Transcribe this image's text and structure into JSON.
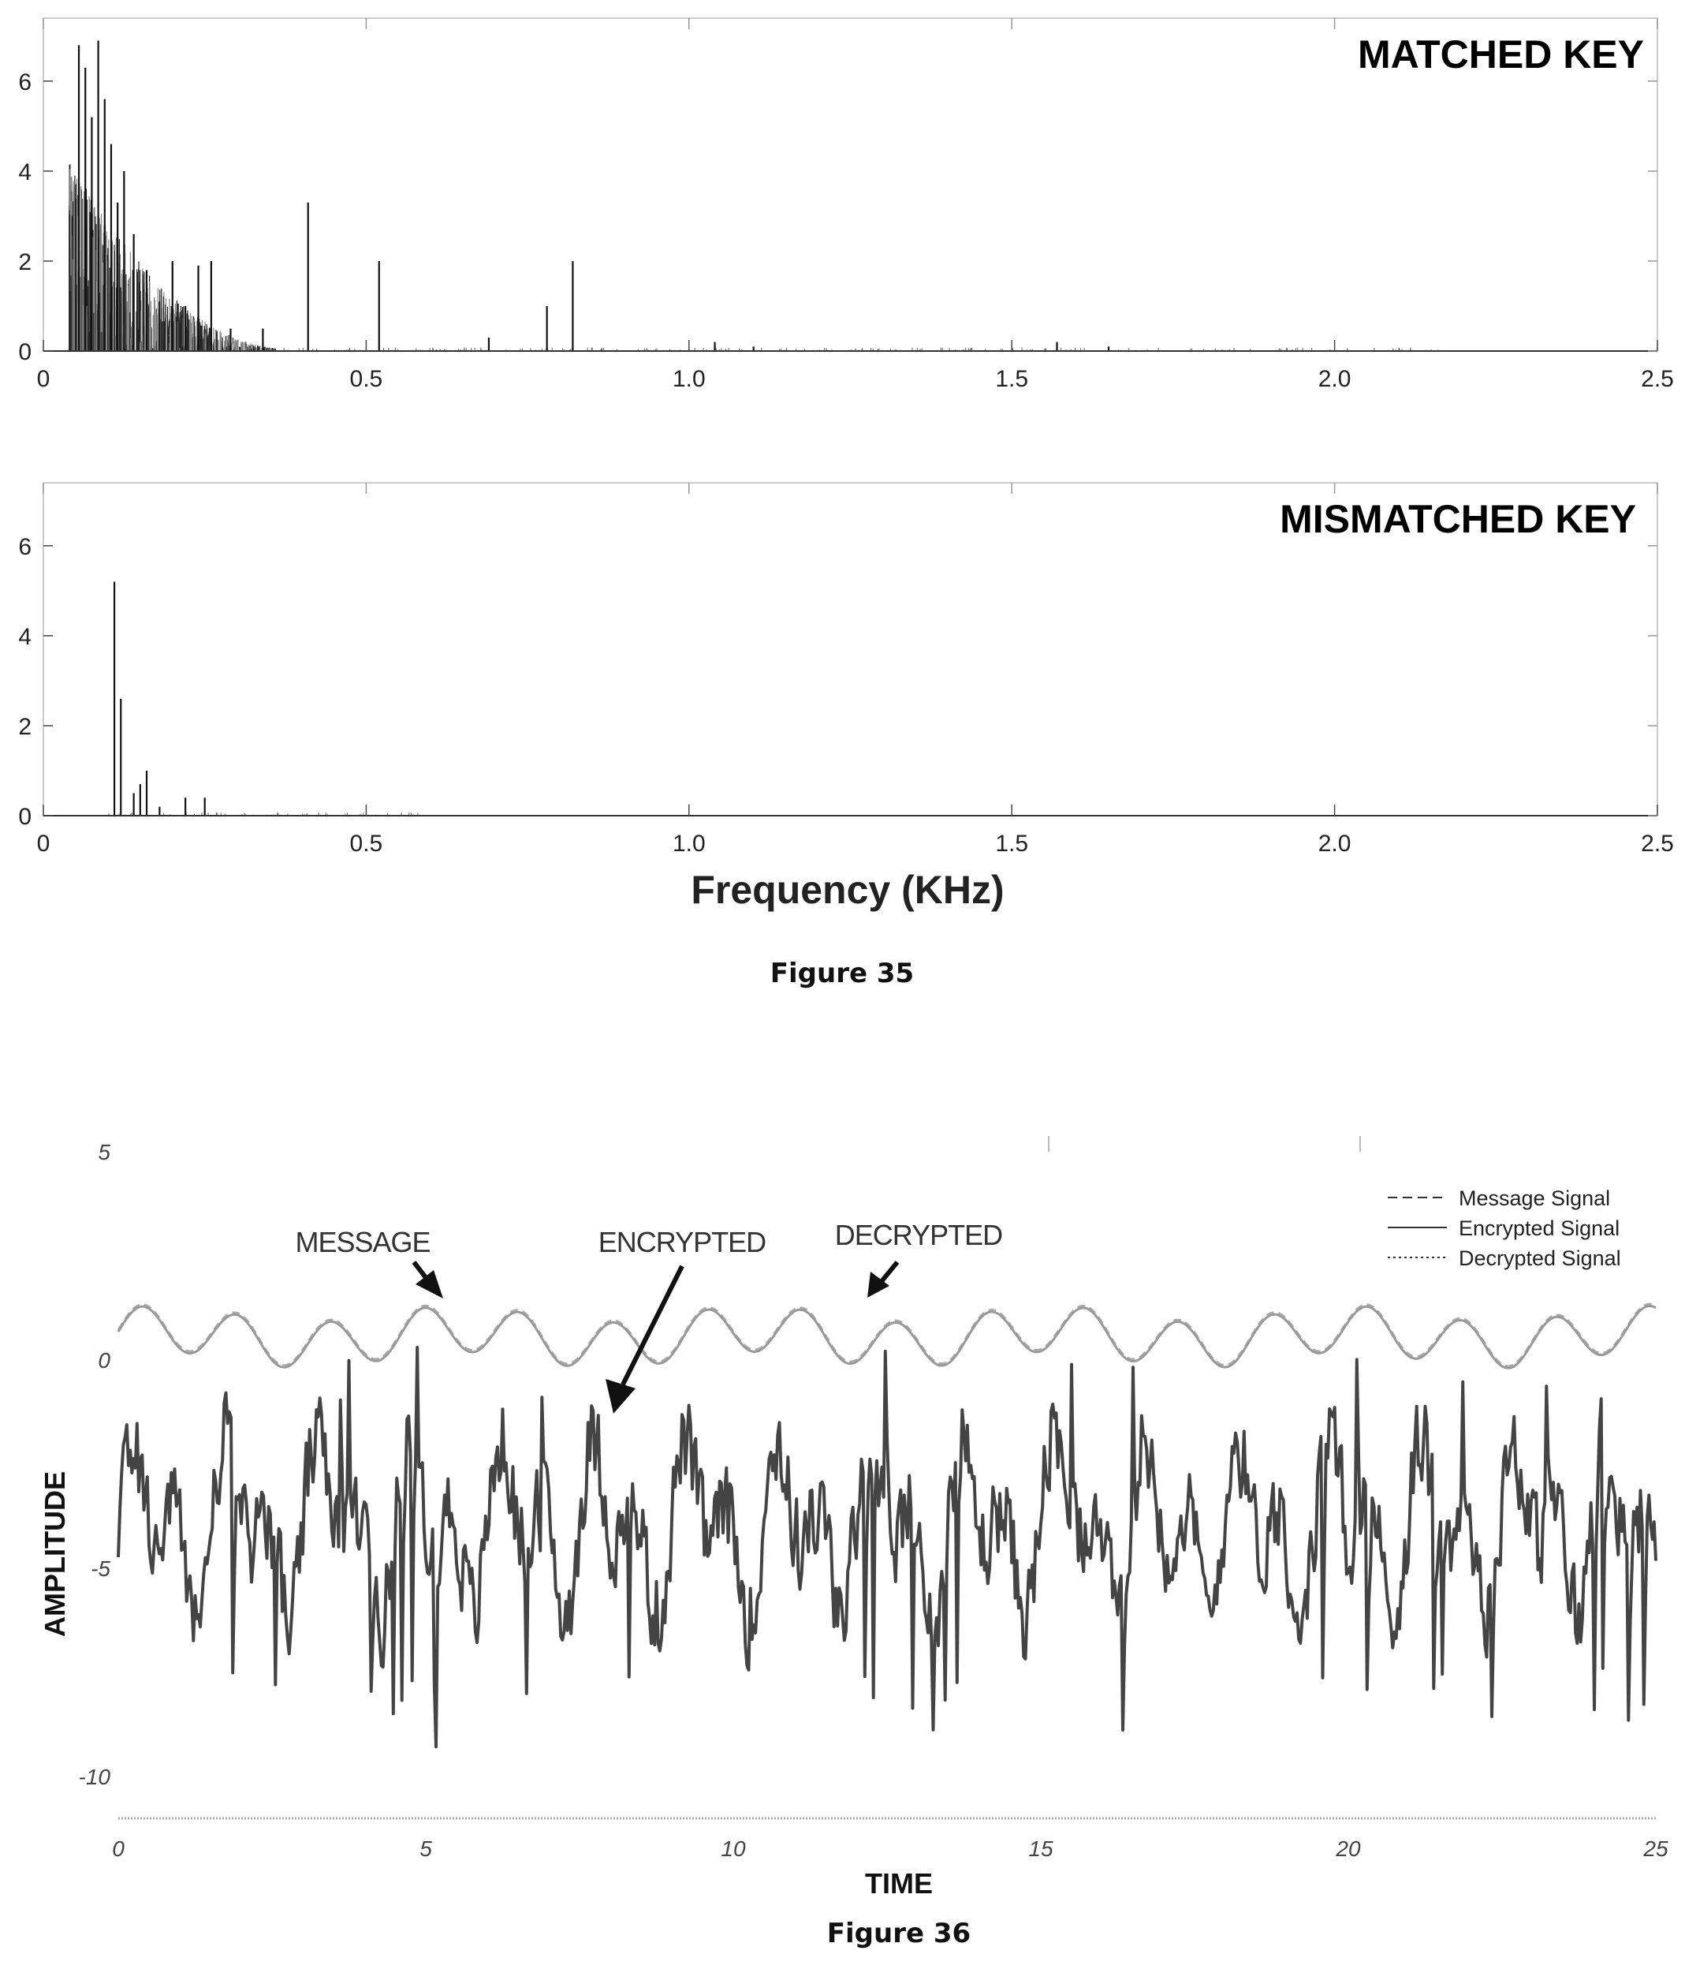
{
  "figure35": {
    "caption": "Figure 35",
    "xlabel": "Frequency (KHz)",
    "chart_data": [
      {
        "type": "bar",
        "title": "MATCHED KEY",
        "xlim": [
          0,
          2.5
        ],
        "ylim": [
          0,
          7
        ],
        "x_ticks": [
          "0",
          "0.5",
          "1.0",
          "1.5",
          "2.0",
          "2.5"
        ],
        "y_ticks": [
          "0",
          "2",
          "4",
          "6"
        ],
        "peaks": {
          "x": [
            0.055,
            0.065,
            0.075,
            0.085,
            0.095,
            0.105,
            0.115,
            0.125,
            0.14,
            0.16,
            0.18,
            0.2,
            0.22,
            0.24,
            0.26,
            0.29,
            0.34,
            0.41,
            0.52,
            0.69,
            0.78,
            0.82,
            1.04,
            1.1,
            1.57,
            1.65
          ],
          "y": [
            6.8,
            6.3,
            5.2,
            6.9,
            5.6,
            4.6,
            3.3,
            4.0,
            2.6,
            1.8,
            1.1,
            2.0,
            1.0,
            1.9,
            2.0,
            0.5,
            0.5,
            3.3,
            2.0,
            0.3,
            1.0,
            2.0,
            0.2,
            0.1,
            0.2,
            0.1
          ]
        }
      },
      {
        "type": "bar",
        "title": "MISMATCHED KEY",
        "xlim": [
          0,
          2.5
        ],
        "ylim": [
          0,
          7
        ],
        "x_ticks": [
          "0",
          "0.5",
          "1.0",
          "1.5",
          "2.0",
          "2.5"
        ],
        "y_ticks": [
          "0",
          "2",
          "4",
          "6"
        ],
        "peaks": {
          "x": [
            0.11,
            0.12,
            0.14,
            0.15,
            0.16,
            0.18,
            0.22,
            0.25
          ],
          "y": [
            5.2,
            2.6,
            0.5,
            0.7,
            1.0,
            0.2,
            0.4,
            0.4
          ]
        }
      }
    ]
  },
  "figure36": {
    "caption": "Figure 36",
    "chart_data": {
      "type": "line",
      "xlabel": "TIME",
      "ylabel": "AMPLITUDE",
      "xlim": [
        0,
        25
      ],
      "ylim": [
        -11,
        5
      ],
      "x_ticks": [
        "0",
        "5",
        "10",
        "15",
        "20",
        "25"
      ],
      "y_ticks": [
        "5",
        "0",
        "-5",
        "-10"
      ],
      "legend_position": "top-right",
      "series": [
        {
          "name": "Message Signal",
          "style": "dashed"
        },
        {
          "name": "Encrypted Signal",
          "style": "solid"
        },
        {
          "name": "Decrypted Signal",
          "style": "dotted"
        }
      ],
      "annotations": [
        {
          "text": "MESSAGE",
          "x": 5.2,
          "y": 0.9
        },
        {
          "text": "ENCRYPTED",
          "x": 7.8,
          "y": -2.2
        },
        {
          "text": "DECRYPTED",
          "x": 12.3,
          "y": 0.9
        }
      ]
    }
  }
}
